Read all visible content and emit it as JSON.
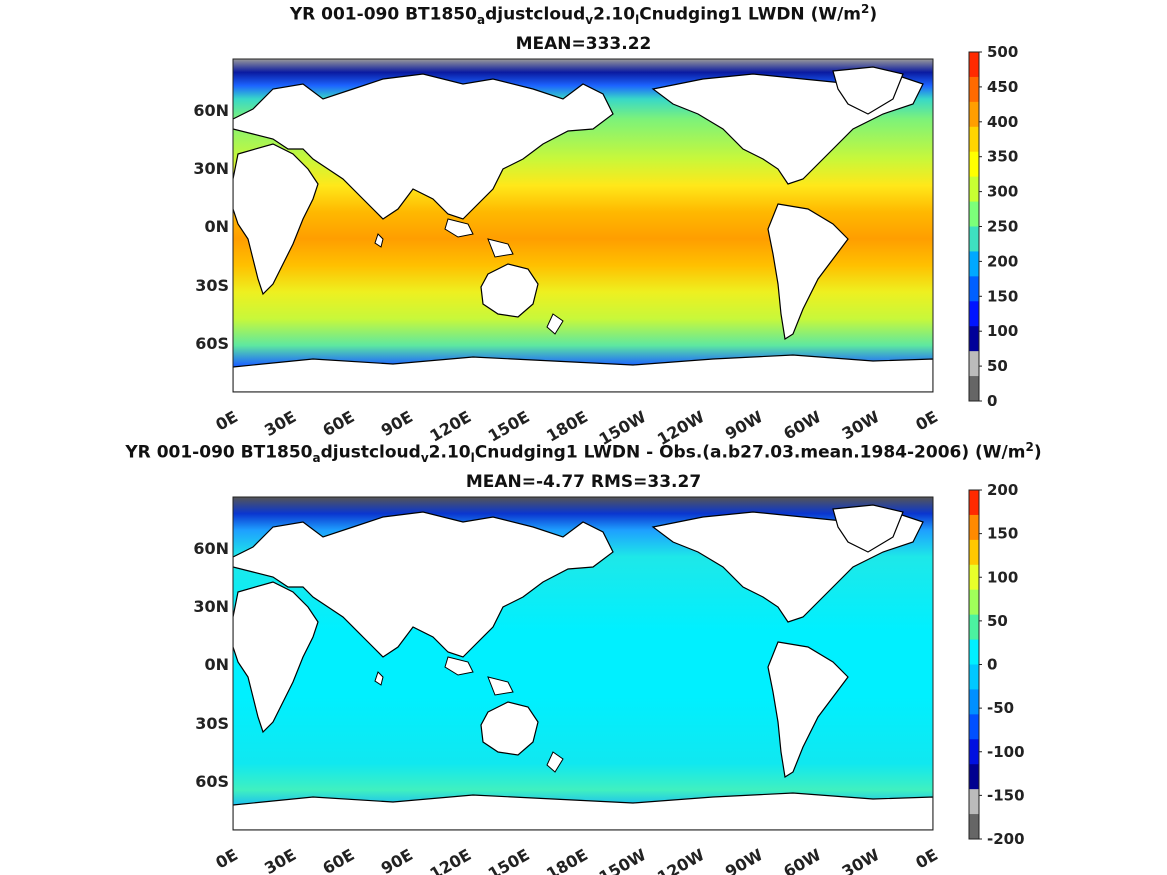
{
  "panels": [
    {
      "title_parts": [
        "YR 001-090 BT1850",
        "a",
        "djustcloud",
        "v",
        "2.10",
        "l",
        "Cnudging1 LWDN (W/m",
        "2",
        ")"
      ],
      "subtitle": "MEAN=333.22",
      "colorbar_ticks": [
        "500",
        "450",
        "400",
        "350",
        "300",
        "250",
        "200",
        "150",
        "100",
        "50",
        "0"
      ]
    },
    {
      "title_parts": [
        "YR 001-090 BT1850",
        "a",
        "djustcloud",
        "v",
        "2.10",
        "l",
        "Cnudging1 LWDN - Obs.(a.b27.03.mean.1984-2006) (W/m",
        "2",
        ")"
      ],
      "subtitle": "MEAN=-4.77 RMS=33.27",
      "colorbar_ticks": [
        "200",
        "150",
        "100",
        "50",
        "0",
        "-50",
        "-100",
        "-150",
        "-200"
      ]
    }
  ],
  "lat_ticks": [
    "60N",
    "30N",
    "0N",
    "30S",
    "60S"
  ],
  "lon_ticks": [
    "0E",
    "30E",
    "60E",
    "90E",
    "120E",
    "150E",
    "180E",
    "150W",
    "120W",
    "90W",
    "60W",
    "30W",
    "0E"
  ],
  "colors": {
    "mean_scale": [
      "#ff2a00",
      "#ff6a00",
      "#ff9e00",
      "#ffd400",
      "#ffff00",
      "#c8ff32",
      "#7cff7a",
      "#3ee0c0",
      "#00a8ff",
      "#0060ff",
      "#0014ff",
      "#000099",
      "#bbbbbb",
      "#666666"
    ],
    "diff_scale": [
      "#ff2a00",
      "#ff8a00",
      "#ffc800",
      "#e8ff2a",
      "#a0ff5a",
      "#4cf2a0",
      "#00f0ff",
      "#00c8ff",
      "#0090ff",
      "#0050ff",
      "#0010e0",
      "#000090",
      "#bbbbbb",
      "#666666"
    ]
  }
}
